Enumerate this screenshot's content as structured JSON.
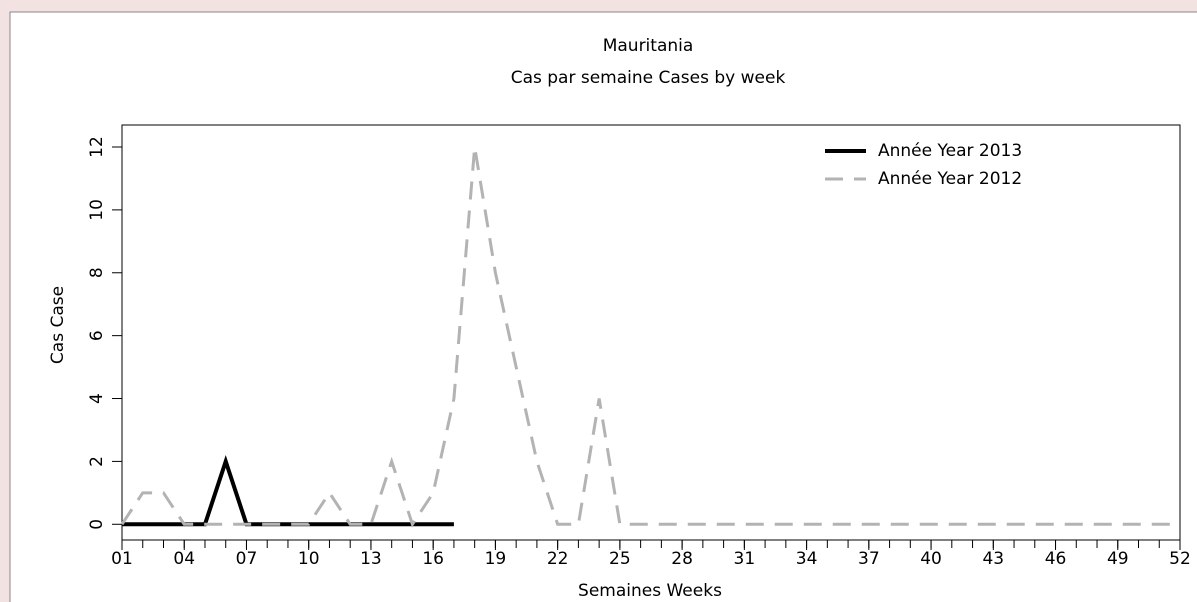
{
  "chart_data": {
    "type": "line",
    "title": "Mauritania",
    "subtitle": "Cas par semaine Cases by week",
    "x_label": "Semaines Weeks",
    "y_label": "Cas Case",
    "x": [
      1,
      2,
      3,
      4,
      5,
      6,
      7,
      8,
      9,
      10,
      11,
      12,
      13,
      14,
      15,
      16,
      17,
      18,
      19,
      20,
      21,
      22,
      23,
      24,
      25,
      26,
      27,
      28,
      29,
      30,
      31,
      32,
      33,
      34,
      35,
      36,
      37,
      38,
      39,
      40,
      41,
      42,
      43,
      44,
      45,
      46,
      47,
      48,
      49,
      50,
      51,
      52
    ],
    "series": [
      {
        "name": "Année Year 2013",
        "color": "#000000",
        "dash": "solid",
        "values": [
          0,
          0,
          0,
          0,
          0,
          2,
          0,
          0,
          0,
          0,
          0,
          0,
          0,
          0,
          0,
          0,
          0,
          null,
          null,
          null,
          null,
          null,
          null,
          null,
          null,
          null,
          null,
          null,
          null,
          null,
          null,
          null,
          null,
          null,
          null,
          null,
          null,
          null,
          null,
          null,
          null,
          null,
          null,
          null,
          null,
          null,
          null,
          null,
          null,
          null,
          null,
          null
        ]
      },
      {
        "name": "Année Year 2012",
        "color": "#b3b3b3",
        "dash": "dashed",
        "values": [
          0,
          1,
          1,
          0,
          0,
          0,
          0,
          0,
          0,
          0,
          1,
          0,
          0,
          2,
          0,
          1,
          4,
          12,
          8,
          5,
          2,
          0,
          0,
          4,
          0,
          0,
          0,
          0,
          0,
          0,
          0,
          0,
          0,
          0,
          0,
          0,
          0,
          0,
          0,
          0,
          0,
          0,
          0,
          0,
          0,
          0,
          0,
          0,
          0,
          0,
          0,
          0
        ]
      }
    ],
    "xlim": [
      1,
      52
    ],
    "ylim": [
      -0.5,
      12.7
    ],
    "xticks": [
      {
        "value": 1,
        "label": "01"
      },
      {
        "value": 4,
        "label": "04"
      },
      {
        "value": 7,
        "label": "07"
      },
      10,
      13,
      16,
      19,
      22,
      25,
      28,
      31,
      34,
      37,
      40,
      43,
      46,
      49,
      52
    ],
    "yticks": [
      0,
      2,
      4,
      6,
      8,
      10,
      12
    ],
    "legend": "top-right"
  }
}
